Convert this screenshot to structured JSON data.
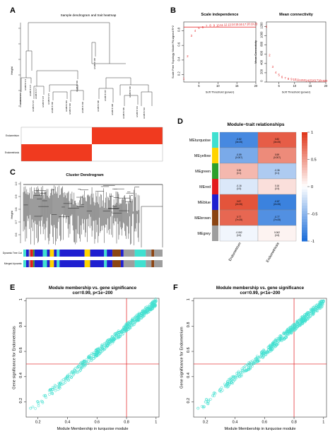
{
  "panels": {
    "A": {
      "label": "A",
      "title": "Sample dendrogram and trait heatmap",
      "ylabel": "Height",
      "leaves": [
        "GSM6757173",
        "GSM6757174",
        "GSM6757175",
        "GSM6757176",
        "GSM6757177",
        "GSM6757178",
        "GSM6757179",
        "GSM6757180",
        "GSM6757181",
        "GSM6757182",
        "GSM6757183",
        "GSM6757184",
        "GSM6757185",
        "GSM6757186",
        "GSM6757187",
        "GSM6757188",
        "GSM6757189",
        "GSM6757190",
        "GSM6757191",
        "GSM6757192"
      ],
      "traits": [
        "Endometrium",
        "Endometriosis"
      ],
      "colors": {
        "on": "#f03a1f",
        "off": "#ffffff"
      }
    },
    "B": {
      "label": "B"
    },
    "C": {
      "label": "C",
      "title": "Cluster Dendrogram",
      "ylabel": "Height",
      "row_labels": [
        "Dynamic Tree Cut",
        "Merged dynamic"
      ],
      "module_colors": [
        "#40e0d0",
        "#1f1fd0",
        "#8b4513",
        "#ffd400",
        "#2ca02c",
        "#e31a1c",
        "#9e9e9e"
      ]
    },
    "D": {
      "label": "D"
    },
    "E": {
      "label": "E"
    },
    "F": {
      "label": "F"
    }
  },
  "chart_data": [
    {
      "type": "scatter",
      "title": "Scale independence",
      "xlabel": "Soft Threshold (power)",
      "ylabel": "Scale Free Topology Model Fit,signed R^2",
      "xlim": [
        1,
        20
      ],
      "ylim": [
        0.1,
        0.92
      ],
      "xticks": [
        5,
        10,
        15,
        20
      ],
      "yticks": [
        0.2,
        0.4,
        0.6,
        0.8
      ],
      "hline": 0.85,
      "color": "#e31a1c",
      "x": [
        1,
        2,
        3,
        4,
        5,
        6,
        7,
        8,
        9,
        10,
        11,
        12,
        13,
        14,
        15,
        16,
        17,
        18,
        19,
        20
      ],
      "y": [
        0.15,
        0.45,
        0.73,
        0.8,
        0.84,
        0.85,
        0.86,
        0.87,
        0.87,
        0.87,
        0.875,
        0.88,
        0.88,
        0.885,
        0.885,
        0.885,
        0.885,
        0.89,
        0.89,
        0.89
      ]
    },
    {
      "type": "scatter",
      "title": "Mean connectivity",
      "xlabel": "Soft Threshold (power)",
      "ylabel": "Mean Connectivity",
      "xlim": [
        1,
        20
      ],
      "ylim": [
        0,
        1300
      ],
      "xticks": [
        5,
        10,
        15,
        20
      ],
      "yticks": [
        0,
        200,
        400,
        600,
        800,
        1000,
        1200
      ],
      "color": "#e31a1c",
      "x": [
        1,
        2,
        3,
        4,
        5,
        6,
        7,
        8,
        9,
        10,
        11,
        12,
        13,
        14,
        15,
        16,
        17,
        18,
        19,
        20
      ],
      "y": [
        1200,
        580,
        330,
        210,
        150,
        110,
        85,
        70,
        58,
        50,
        45,
        40,
        36,
        33,
        31,
        29,
        28,
        27,
        26,
        25
      ]
    },
    {
      "type": "heatmap",
      "title": "Module−trait relationships",
      "rows": [
        "MEturquoise",
        "MEyellow",
        "MEgreen",
        "MEred",
        "MEblue",
        "MEbrown",
        "MEgrey"
      ],
      "row_colors": [
        "#40e0d0",
        "#ffd400",
        "#2ca02c",
        "#e31a1c",
        "#1f1fd0",
        "#8b4513",
        "#9e9e9e"
      ],
      "columns": [
        "Endometrium",
        "Endometriosis"
      ],
      "values": [
        [
          -0.82,
          0.82
        ],
        [
          -0.59,
          0.59
        ],
        [
          0.36,
          -0.36
        ],
        [
          -0.16,
          0.16
        ],
        [
          0.87,
          -0.87
        ],
        [
          0.77,
          -0.77
        ],
        [
          -0.062,
          0.062
        ]
      ],
      "pvalues": [
        [
          "(3e-05)",
          "(3e-05)"
        ],
        [
          "(0.007)",
          "(0.007)"
        ],
        [
          "(0.1)",
          "(0.1)"
        ],
        [
          "(0.5)",
          "(0.5)"
        ],
        [
          "(2e-06)",
          "(2e-06)"
        ],
        [
          "(7e-05)",
          "(7e-05)"
        ],
        [
          "(0.8)",
          "(0.8)"
        ]
      ],
      "legend_ticks": [
        -1,
        -0.5,
        0,
        0.5,
        1
      ],
      "colorscale": [
        "#1e6fd9",
        "#ffffff",
        "#e03a1e"
      ]
    },
    {
      "type": "scatter",
      "title": "Module membership vs. gene significance",
      "subtitle": "cor=0.99, p<1e−200",
      "xlabel": "Module Membership in turquoise module",
      "ylabel": "Gene significance for Endometriosis",
      "xlim": [
        0.12,
        1.02
      ],
      "ylim": [
        0.08,
        1.02
      ],
      "xticks": [
        0.2,
        0.4,
        0.6,
        0.8,
        1.0
      ],
      "yticks": [
        0.2,
        0.4,
        0.6,
        0.8,
        1.0
      ],
      "vline": 0.8,
      "hline": 0.5,
      "color": "#40e0d0",
      "x": [
        0.15,
        0.2,
        0.25,
        0.3,
        0.35,
        0.4,
        0.45,
        0.5,
        0.55,
        0.6,
        0.65,
        0.7,
        0.75,
        0.8,
        0.85,
        0.9,
        0.95,
        1.0
      ],
      "y": [
        0.15,
        0.2,
        0.25,
        0.3,
        0.35,
        0.4,
        0.45,
        0.5,
        0.55,
        0.6,
        0.65,
        0.7,
        0.75,
        0.8,
        0.85,
        0.9,
        0.95,
        1.0
      ]
    },
    {
      "type": "scatter",
      "title": "Module membership vs. gene significance",
      "subtitle": "cor=0.99, p<1e−200",
      "xlabel": "Module Membership in turquoise module",
      "ylabel": "Gene significance for Endometrium",
      "xlim": [
        0.12,
        1.02
      ],
      "ylim": [
        0.08,
        1.02
      ],
      "xticks": [
        0.2,
        0.4,
        0.6,
        0.8,
        1.0
      ],
      "yticks": [
        0.2,
        0.4,
        0.6,
        0.8,
        1.0
      ],
      "vline": 0.8,
      "hline": 0.5,
      "color": "#40e0d0",
      "x": [
        0.15,
        0.2,
        0.25,
        0.3,
        0.35,
        0.4,
        0.45,
        0.5,
        0.55,
        0.6,
        0.65,
        0.7,
        0.75,
        0.8,
        0.85,
        0.9,
        0.95,
        1.0
      ],
      "y": [
        0.15,
        0.2,
        0.25,
        0.3,
        0.35,
        0.4,
        0.45,
        0.5,
        0.55,
        0.6,
        0.65,
        0.7,
        0.75,
        0.8,
        0.85,
        0.9,
        0.95,
        1.0
      ]
    }
  ]
}
